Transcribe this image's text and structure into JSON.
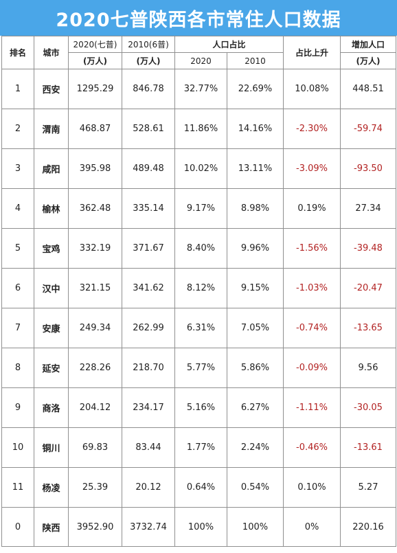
{
  "title": "2020七普陕西各市常住人口数据",
  "header": {
    "rank": "排名",
    "city": "城市",
    "pop2020": "2020(七普)",
    "pop2010": "2010(6普)",
    "unit": "(万人)",
    "share": "人口占比",
    "share2020": "2020",
    "share2010": "2010",
    "share_change": "占比上升",
    "increase": "增加人口",
    "increase_unit": "(万人)"
  },
  "rows": [
    {
      "rank": "1",
      "city": "西安",
      "pop2020": "1295.29",
      "pop2010": "846.78",
      "share2020": "32.77%",
      "share2010": "22.69%",
      "change": "10.08%",
      "increase": "448.51",
      "neg": false
    },
    {
      "rank": "2",
      "city": "渭南",
      "pop2020": "468.87",
      "pop2010": "528.61",
      "share2020": "11.86%",
      "share2010": "14.16%",
      "change": "-2.30%",
      "increase": "-59.74",
      "neg": true
    },
    {
      "rank": "3",
      "city": "咸阳",
      "pop2020": "395.98",
      "pop2010": "489.48",
      "share2020": "10.02%",
      "share2010": "13.11%",
      "change": "-3.09%",
      "increase": "-93.50",
      "neg": true
    },
    {
      "rank": "4",
      "city": "榆林",
      "pop2020": "362.48",
      "pop2010": "335.14",
      "share2020": "9.17%",
      "share2010": "8.98%",
      "change": "0.19%",
      "increase": "27.34",
      "neg": false
    },
    {
      "rank": "5",
      "city": "宝鸡",
      "pop2020": "332.19",
      "pop2010": "371.67",
      "share2020": "8.40%",
      "share2010": "9.96%",
      "change": "-1.56%",
      "increase": "-39.48",
      "neg": true
    },
    {
      "rank": "6",
      "city": "汉中",
      "pop2020": "321.15",
      "pop2010": "341.62",
      "share2020": "8.12%",
      "share2010": "9.15%",
      "change": "-1.03%",
      "increase": "-20.47",
      "neg": true
    },
    {
      "rank": "7",
      "city": "安康",
      "pop2020": "249.34",
      "pop2010": "262.99",
      "share2020": "6.31%",
      "share2010": "7.05%",
      "change": "-0.74%",
      "increase": "-13.65",
      "neg": true
    },
    {
      "rank": "8",
      "city": "延安",
      "pop2020": "228.26",
      "pop2010": "218.70",
      "share2020": "5.77%",
      "share2010": "5.86%",
      "change": "-0.09%",
      "increase": "9.56",
      "neg": true
    },
    {
      "rank": "9",
      "city": "商洛",
      "pop2020": "204.12",
      "pop2010": "234.17",
      "share2020": "5.16%",
      "share2010": "6.27%",
      "change": "-1.11%",
      "increase": "-30.05",
      "neg": true
    },
    {
      "rank": "10",
      "city": "铜川",
      "pop2020": "69.83",
      "pop2010": "83.44",
      "share2020": "1.77%",
      "share2010": "2.24%",
      "change": "-0.46%",
      "increase": "-13.61",
      "neg": true
    },
    {
      "rank": "11",
      "city": "杨凌",
      "pop2020": "25.39",
      "pop2010": "20.12",
      "share2020": "0.64%",
      "share2010": "0.54%",
      "change": "0.10%",
      "increase": "5.27",
      "neg": false
    },
    {
      "rank": "0",
      "city": "陕西",
      "pop2020": "3952.90",
      "pop2010": "3732.74",
      "share2020": "100%",
      "share2010": "100%",
      "change": "0%",
      "increase": "220.16",
      "neg": false
    }
  ],
  "colors": {
    "title_bg": "#4aa6e8",
    "title_text": "#ffffff",
    "negative": "#b22222"
  }
}
